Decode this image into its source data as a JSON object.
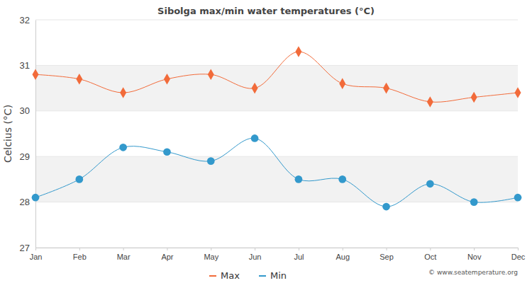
{
  "chart_data": {
    "type": "line",
    "title": "Sibolga max/min water temperatures (°C)",
    "y_label": "Celcius (°C)",
    "annotations": [
      "© www.seatemperature.org"
    ],
    "categories": [
      "Jan",
      "Feb",
      "Mar",
      "Apr",
      "May",
      "Jun",
      "Jul",
      "Aug",
      "Sep",
      "Oct",
      "Nov",
      "Dec"
    ],
    "series": [
      {
        "name": "Max",
        "color": "#f26b3a",
        "marker": "diamond",
        "values": [
          30.8,
          30.7,
          30.4,
          30.7,
          30.8,
          30.5,
          31.3,
          30.6,
          30.5,
          30.2,
          30.3,
          30.4
        ]
      },
      {
        "name": "Min",
        "color": "#3399cc",
        "marker": "circle",
        "values": [
          28.1,
          28.5,
          29.2,
          29.1,
          28.9,
          29.4,
          28.5,
          28.5,
          27.9,
          28.4,
          28.0,
          28.1
        ]
      }
    ],
    "ylim": [
      27,
      32
    ],
    "yticks": [
      27,
      28,
      29,
      30,
      31,
      32
    ],
    "grid": true,
    "legend": "bottom"
  }
}
